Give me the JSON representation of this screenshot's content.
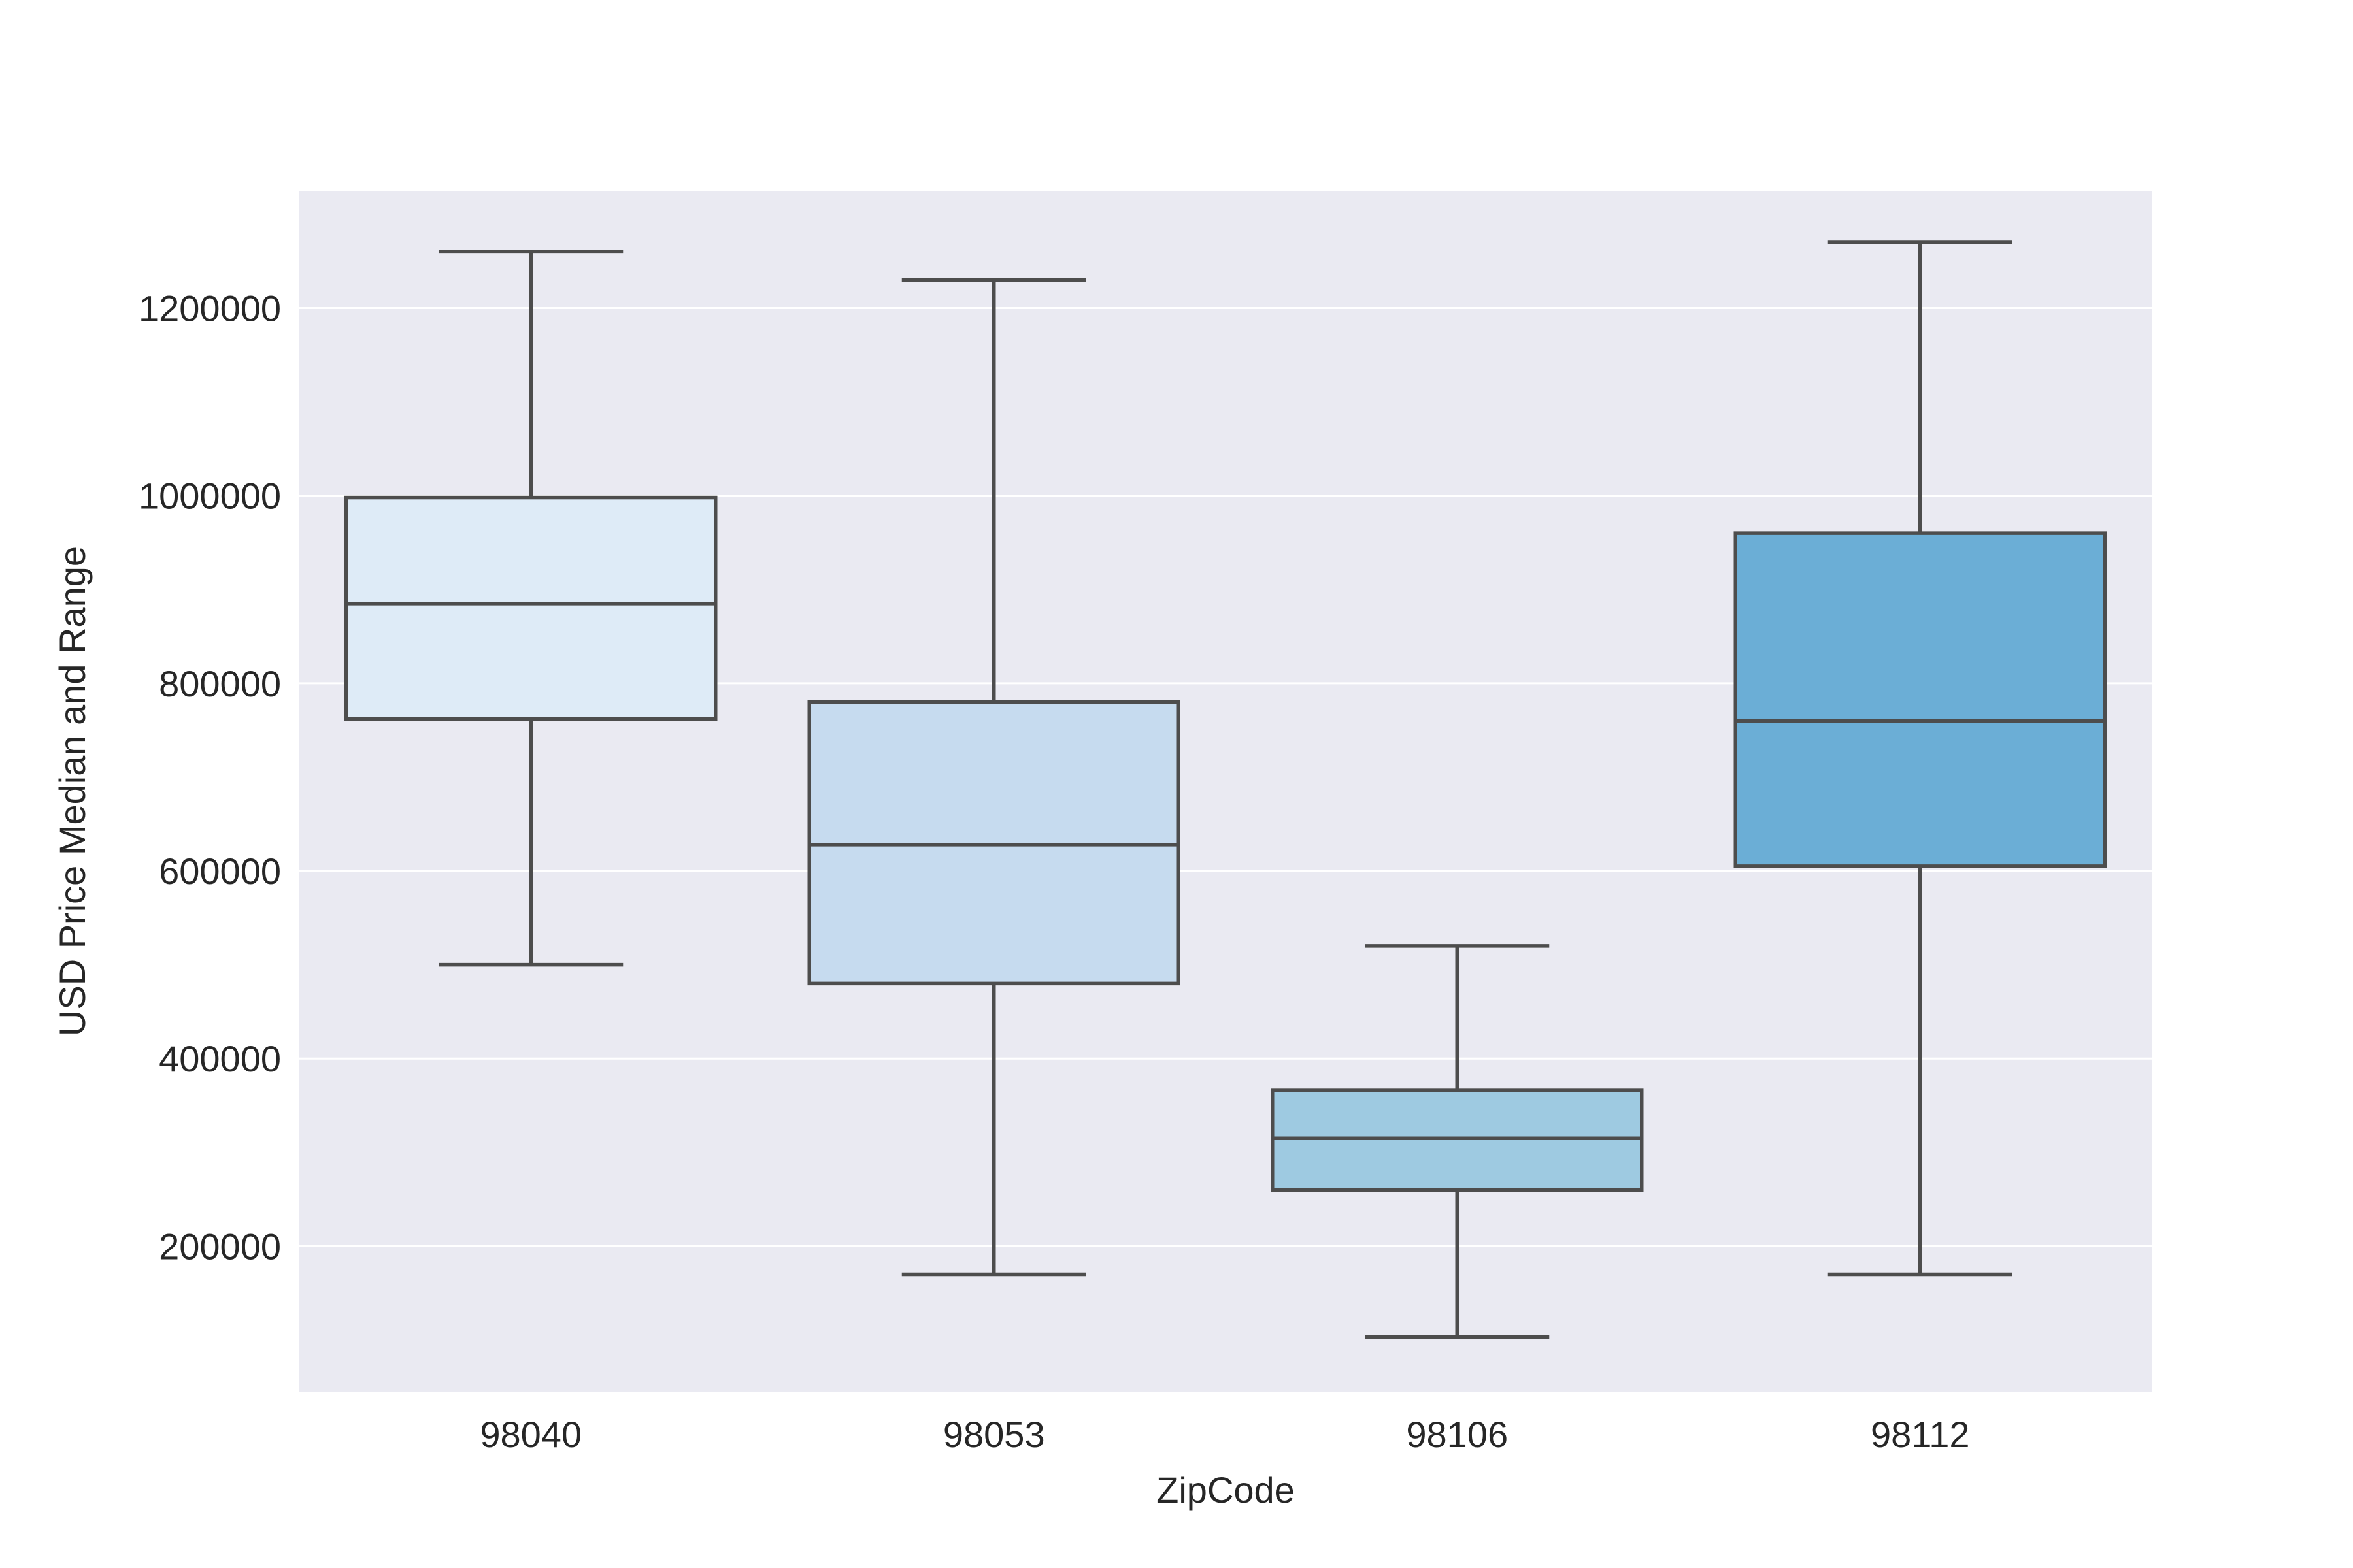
{
  "chart_data": {
    "type": "box",
    "title": "",
    "xlabel": "ZipCode",
    "ylabel": "USD Price Median and Range",
    "ylim": [
      45000,
      1325000
    ],
    "yticks": [
      200000,
      400000,
      600000,
      800000,
      1000000,
      1200000
    ],
    "grid": true,
    "background_color": "#eaeaf2",
    "categories": [
      "98040",
      "98053",
      "98106",
      "98112"
    ],
    "boxes": [
      {
        "category": "98040",
        "whisker_low": 500000,
        "q1": 762000,
        "median": 885000,
        "q3": 998000,
        "whisker_high": 1260000,
        "color": "#deebf7"
      },
      {
        "category": "98053",
        "whisker_low": 170000,
        "q1": 480000,
        "median": 628000,
        "q3": 780000,
        "whisker_high": 1230000,
        "color": "#c6dbef"
      },
      {
        "category": "98106",
        "whisker_low": 103000,
        "q1": 260000,
        "median": 315000,
        "q3": 366000,
        "whisker_high": 520000,
        "color": "#9ecae1"
      },
      {
        "category": "98112",
        "whisker_low": 170000,
        "q1": 605000,
        "median": 760000,
        "q3": 960000,
        "whisker_high": 1270000,
        "color": "#6baed6"
      }
    ],
    "stroke_color": "#4d4d4d"
  }
}
